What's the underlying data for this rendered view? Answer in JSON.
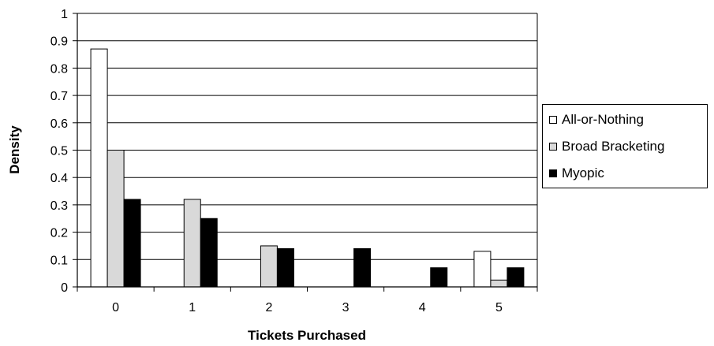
{
  "chart_data": {
    "type": "bar",
    "categories": [
      "0",
      "1",
      "2",
      "3",
      "4",
      "5"
    ],
    "series": [
      {
        "name": "All-or-Nothing",
        "color": "#ffffff",
        "values": [
          0.87,
          0,
          0,
          0,
          0,
          0.13
        ]
      },
      {
        "name": "Broad Bracketing",
        "color": "#d9d9d9",
        "values": [
          0.5,
          0.32,
          0.15,
          0,
          0,
          0.025
        ]
      },
      {
        "name": "Myopic",
        "color": "#000000",
        "values": [
          0.32,
          0.25,
          0.14,
          0.14,
          0.07,
          0.07
        ]
      }
    ],
    "xlabel": "Tickets Purchased",
    "ylabel": "Density",
    "ylim": [
      0,
      1
    ],
    "yticks": [
      "0",
      "0.1",
      "0.2",
      "0.3",
      "0.4",
      "0.5",
      "0.6",
      "0.7",
      "0.8",
      "0.9",
      "1"
    ],
    "grid": true,
    "legend_position": "right"
  }
}
